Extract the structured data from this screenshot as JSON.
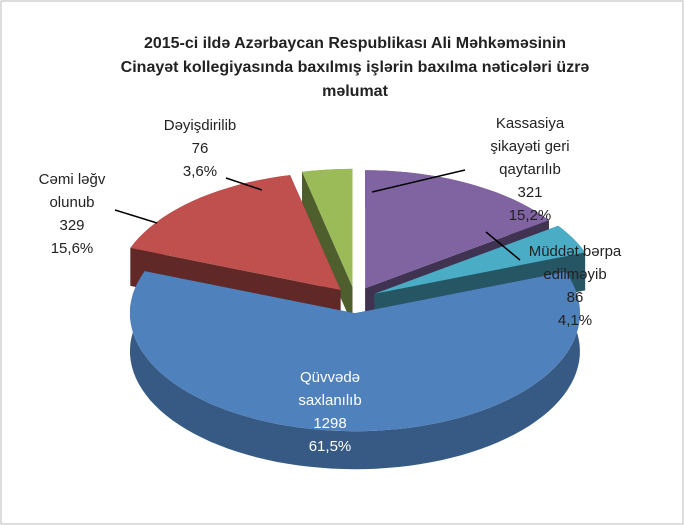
{
  "chart_data": {
    "type": "pie3d",
    "title": [
      "2015-ci ildə Azərbaycan Respublikası Ali Məhkəməsinin",
      "Cinayət kollegiyasında baxılmış işlərin baxılma nəticələri üzrə",
      "məlumat"
    ],
    "categories": [
      [
        "Kassasiya",
        "şikayəti geri",
        "qaytarılıb"
      ],
      [
        "Müddət bərpa",
        "edilməyib"
      ],
      [
        "Qüvvədə",
        "saxlanılıb"
      ],
      [
        "Cəmi ləğv",
        "olunub"
      ],
      [
        "Dəyişdirilib"
      ]
    ],
    "values": [
      321,
      86,
      1298,
      329,
      76
    ],
    "share_labels": [
      "15,2%",
      "4,1%",
      "61,5%",
      "15,6%",
      "3,6%"
    ],
    "colors": [
      "#8064a2",
      "#4bacc6",
      "#4f81bd",
      "#c0504d",
      "#9bbb59"
    ]
  }
}
